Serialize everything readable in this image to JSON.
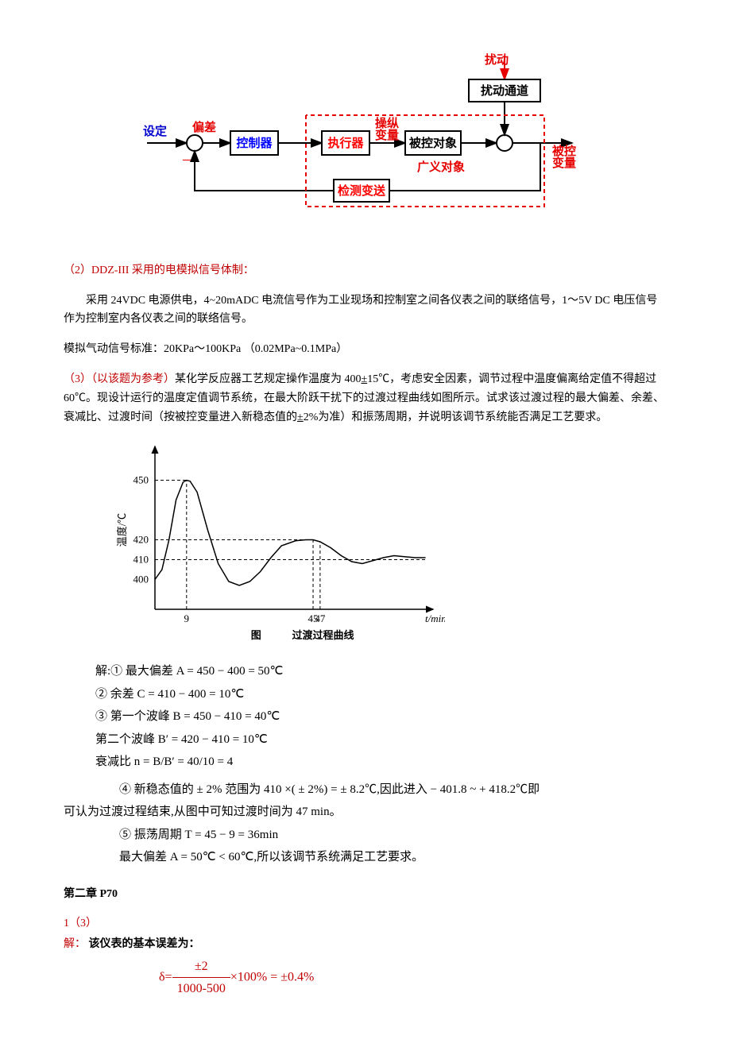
{
  "block_diagram": {
    "labels": {
      "setpoint": "设定",
      "error": "偏差",
      "minus": "—",
      "controller": "控制器",
      "actuator": "执行器",
      "manipulated": "操纵变量",
      "plant": "被控对象",
      "generalized": "广义对象",
      "measure": "检测变送",
      "disturb": "扰动",
      "disturb_channel": "扰动通道",
      "output": "被控变量"
    },
    "colors": {
      "red": "#e60000",
      "blue": "#0000cc",
      "black": "#000000"
    },
    "stroke_width": 2,
    "box_fill": "#ffffff"
  },
  "q2": {
    "heading": "（2）DDZ-III 采用的电模拟信号体制：",
    "p1": "采用 24VDC 电源供电，4~20mADC 电流信号作为工业现场和控制室之间各仪表之间的联络信号，1～5V DC 电压信号作为控制室内各仪表之间的联络信号。",
    "p2": "模拟气动信号标准：20KPa～100KPa   （0.02MPa~0.1MPa）"
  },
  "q3": {
    "heading_a": "（3）（以该题为参考）",
    "heading_b": "某化学反应器工艺规定操作温度为 400",
    "heading_c": "15℃，考虑安全因素，调节过程中温度偏离给定值不得超过 60℃。现设计运行的温度定值调节系统，在最大阶跃干扰下的过渡过程曲线如图所示。试求该过渡过程的最大偏差、余差、衰减比、过渡时间（按被控变量进入新稳态值的",
    "heading_d": "2%为准）和振荡周期，并说明该调节系统能否满足工艺要求。",
    "pm": "±"
  },
  "chart": {
    "type": "line",
    "x_axis_label": "t/min",
    "y_axis_label": "温度/℃",
    "caption_a": "图",
    "caption_b": "过渡过程曲线",
    "y_ticks": [
      400,
      410,
      420,
      450
    ],
    "x_ticks": [
      9,
      45,
      47
    ],
    "y_range": [
      385,
      465
    ],
    "x_range": [
      0,
      78
    ],
    "settling_value": 410,
    "curve_points": [
      [
        0,
        400
      ],
      [
        2,
        405
      ],
      [
        4,
        420
      ],
      [
        6,
        440
      ],
      [
        8,
        449
      ],
      [
        9,
        450
      ],
      [
        10,
        449.5
      ],
      [
        12,
        444
      ],
      [
        15,
        425
      ],
      [
        18,
        408
      ],
      [
        21,
        399
      ],
      [
        24,
        397
      ],
      [
        27,
        399
      ],
      [
        30,
        404
      ],
      [
        33,
        411
      ],
      [
        36,
        417
      ],
      [
        40,
        419.5
      ],
      [
        43,
        420
      ],
      [
        45,
        420
      ],
      [
        47,
        419
      ],
      [
        50,
        416
      ],
      [
        53,
        412
      ],
      [
        56,
        409
      ],
      [
        59,
        408
      ],
      [
        62,
        409.5
      ],
      [
        65,
        411
      ],
      [
        68,
        412
      ],
      [
        71,
        411.5
      ],
      [
        74,
        411
      ],
      [
        77,
        411
      ]
    ],
    "dash_lines": [
      {
        "type": "h",
        "y": 450,
        "x1": 0,
        "x2": 9
      },
      {
        "type": "h",
        "y": 420,
        "x1": 0,
        "x2": 45
      },
      {
        "type": "h",
        "y": 410,
        "x1": 0,
        "x2": 77
      },
      {
        "type": "v",
        "x": 9,
        "y1": 385,
        "y2": 450
      },
      {
        "type": "v",
        "x": 45,
        "y1": 385,
        "y2": 420
      },
      {
        "type": "v",
        "x": 47,
        "y1": 385,
        "y2": 419
      }
    ],
    "colors": {
      "axis": "#000000",
      "curve": "#000000",
      "dash": "#000000"
    },
    "line_width": 1.5,
    "tick_fontsize": 13,
    "label_fontsize": 13
  },
  "solution": {
    "l1": "解:① 最大偏差 A = 450 − 400 = 50℃",
    "l2": "② 余差 C = 410 − 400 = 10℃",
    "l3": "③ 第一个波峰 B = 450 − 410 = 40℃",
    "l4": "第二个波峰 B′ = 420 − 410 = 10℃",
    "l5": "衰减比 n = B/B′ = 40/10 = 4",
    "l6a": "④ 新稳态值的 ± 2% 范围为 410 ×( ± 2%) = ± 8.2℃,因此进入 − 401.8 ~ + 418.2℃即",
    "l6b": "可认为过渡过程结束,从图中可知过渡时间为 47 min。",
    "l7": "⑤ 振荡周期 T = 45 − 9 = 36min",
    "l8": "最大偏差 A = 50℃ < 60℃,所以该调节系统满足工艺要求。"
  },
  "ch2": {
    "heading": "第二章 P70",
    "sub": "1（3）",
    "ans_label": "解：",
    "ans_text": " 该仪表的基本误差为：",
    "formula": {
      "delta": "δ=",
      "num": "±2",
      "den": "1000-500",
      "tail": "×100% = ±0.4%"
    }
  }
}
